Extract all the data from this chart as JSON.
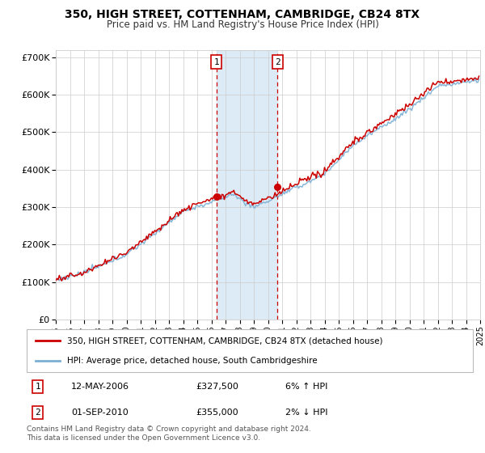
{
  "title": "350, HIGH STREET, COTTENHAM, CAMBRIDGE, CB24 8TX",
  "subtitle": "Price paid vs. HM Land Registry's House Price Index (HPI)",
  "legend_label1": "350, HIGH STREET, COTTENHAM, CAMBRIDGE, CB24 8TX (detached house)",
  "legend_label2": "HPI: Average price, detached house, South Cambridgeshire",
  "sale1_date": "12-MAY-2006",
  "sale1_price": 327500,
  "sale1_hpi_text": "6% ↑ HPI",
  "sale2_date": "01-SEP-2010",
  "sale2_price": 355000,
  "sale2_hpi_text": "2% ↓ HPI",
  "sale1_x": 2006.36,
  "sale2_x": 2010.67,
  "color_red": "#CC0000",
  "color_blue": "#7BAFD4",
  "color_shade": "#D8E8F5",
  "ylim": [
    0,
    720000
  ],
  "yticks": [
    0,
    100000,
    200000,
    300000,
    400000,
    500000,
    600000,
    700000
  ],
  "ytick_labels": [
    "£0",
    "£100K",
    "£200K",
    "£300K",
    "£400K",
    "£500K",
    "£600K",
    "£700K"
  ],
  "footer": "Contains HM Land Registry data © Crown copyright and database right 2024.\nThis data is licensed under the Open Government Licence v3.0.",
  "bg_color": "#FFFFFF",
  "plot_bg_color": "#FFFFFF",
  "grid_color": "#CCCCCC"
}
